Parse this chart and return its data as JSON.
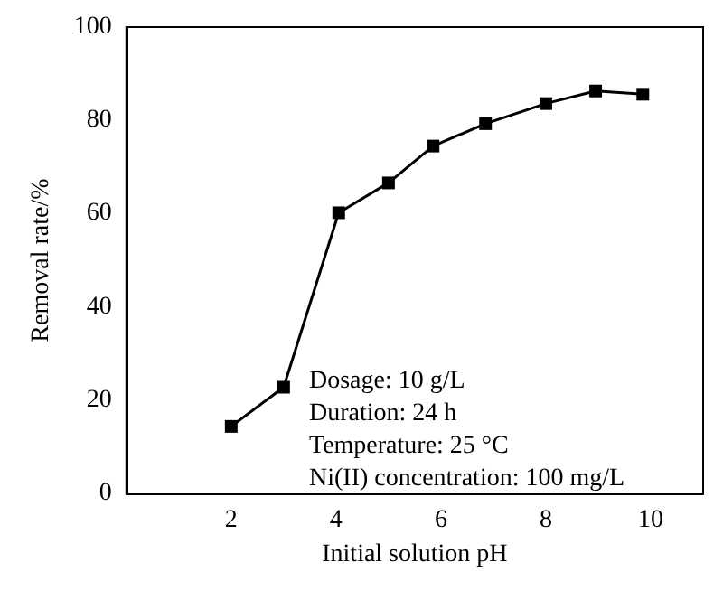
{
  "chart_data": {
    "type": "line",
    "xlabel": "Initial solution pH",
    "ylabel": "Removal rate/%",
    "x": [
      2,
      3,
      4.05,
      5,
      5.85,
      6.85,
      8,
      8.95,
      9.85
    ],
    "series": [
      {
        "color": "#000000",
        "values": [
          14.4,
          22.8,
          60.2,
          66.6,
          74.5,
          79.3,
          83.6,
          86.3,
          85.6
        ]
      }
    ],
    "xlim": [
      0,
      11
    ],
    "xticks": [
      2,
      4,
      6,
      8,
      10
    ],
    "ylim": [
      0,
      100
    ],
    "yticks": [
      0,
      20,
      40,
      60,
      80,
      100
    ],
    "marker": "square",
    "line_style": "solid",
    "grid": false,
    "annotations": [
      "Dosage: 10 g/L",
      "Duration: 24 h",
      "Temperature: 25 °C",
      "Ni(II) concentration: 100 mg/L"
    ]
  }
}
